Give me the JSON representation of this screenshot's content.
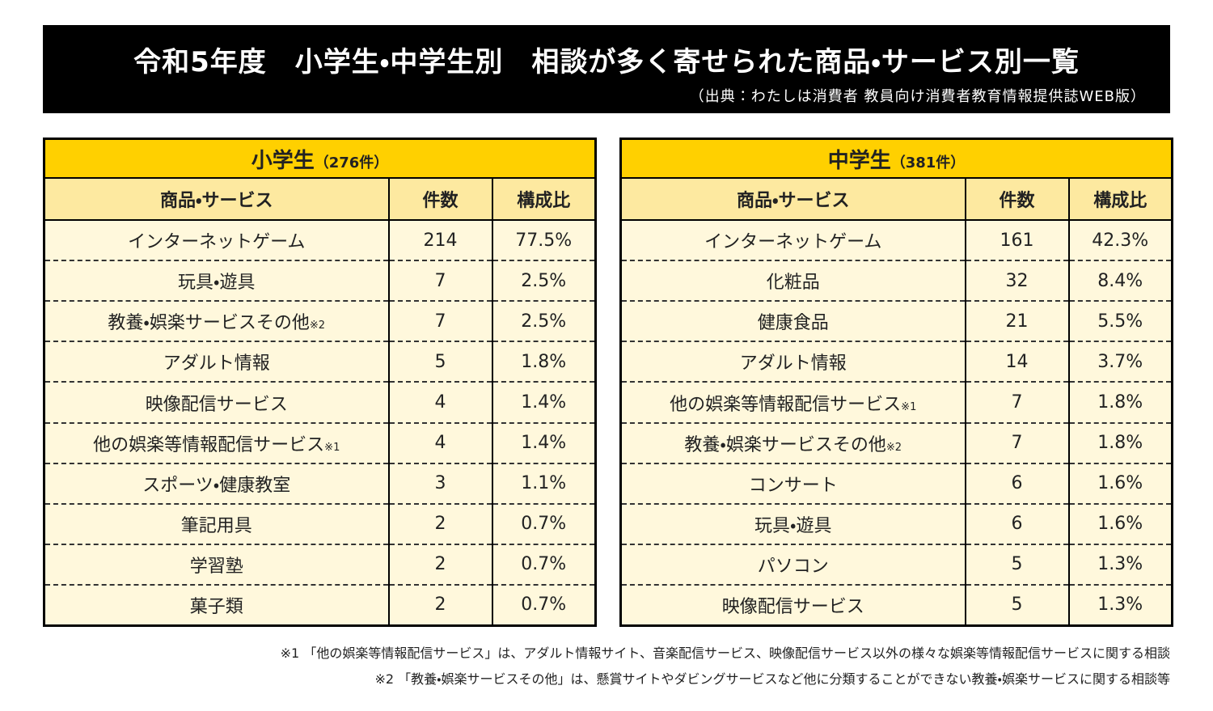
{
  "header": {
    "title": "令和5年度　小学生・中学生別　相談が多く寄せられた商品・サービス別一覧",
    "source": "（出典：わたしは消費者 教員向け消費者教育情報提供誌WEB版）"
  },
  "tables": [
    {
      "title": "小学生",
      "count_label": "（276件）",
      "columns": [
        "商品・サービス",
        "件数",
        "構成比"
      ],
      "rows": [
        {
          "item": "インターネットゲーム",
          "count": "214",
          "ratio": "77.5%"
        },
        {
          "item": "玩具・遊具",
          "count": "7",
          "ratio": "2.5%"
        },
        {
          "item": "教養・娯楽サービスその他",
          "note": "※2",
          "count": "7",
          "ratio": "2.5%"
        },
        {
          "item": "アダルト情報",
          "count": "5",
          "ratio": "1.8%"
        },
        {
          "item": "映像配信サービス",
          "count": "4",
          "ratio": "1.4%"
        },
        {
          "item": "他の娯楽等情報配信サービス",
          "note": "※1",
          "count": "4",
          "ratio": "1.4%"
        },
        {
          "item": "スポーツ・健康教室",
          "count": "3",
          "ratio": "1.1%"
        },
        {
          "item": "筆記用具",
          "count": "2",
          "ratio": "0.7%"
        },
        {
          "item": "学習塾",
          "count": "2",
          "ratio": "0.7%"
        },
        {
          "item": "菓子類",
          "count": "2",
          "ratio": "0.7%"
        }
      ]
    },
    {
      "title": "中学生",
      "count_label": "（381件）",
      "columns": [
        "商品・サービス",
        "件数",
        "構成比"
      ],
      "rows": [
        {
          "item": "インターネットゲーム",
          "count": "161",
          "ratio": "42.3%"
        },
        {
          "item": "化粧品",
          "count": "32",
          "ratio": "8.4%"
        },
        {
          "item": "健康食品",
          "count": "21",
          "ratio": "5.5%"
        },
        {
          "item": "アダルト情報",
          "count": "14",
          "ratio": "3.7%"
        },
        {
          "item": "他の娯楽等情報配信サービス",
          "note": "※1",
          "count": "7",
          "ratio": "1.8%"
        },
        {
          "item": "教養・娯楽サービスその他",
          "note": "※2",
          "count": "7",
          "ratio": "1.8%"
        },
        {
          "item": "コンサート",
          "count": "6",
          "ratio": "1.6%"
        },
        {
          "item": "玩具・遊具",
          "count": "6",
          "ratio": "1.6%"
        },
        {
          "item": "パソコン",
          "count": "5",
          "ratio": "1.3%"
        },
        {
          "item": "映像配信サービス",
          "count": "5",
          "ratio": "1.3%"
        }
      ]
    }
  ],
  "footnotes": [
    "※1 「他の娯楽等情報配信サービス」は、アダルト情報サイト、音楽配信サービス、映像配信サービス以外の様々な娯楽等情報配信サービスに関する相談",
    "※2 「教養・娯楽サービスその他」は、懸賞サイトやダビングサービスなど他に分類することができない教養・娯楽サービスに関する相談等"
  ]
}
